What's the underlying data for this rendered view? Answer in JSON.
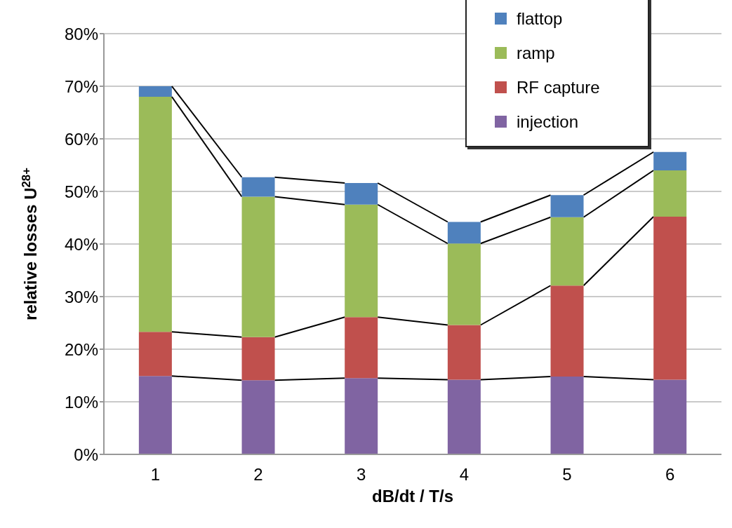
{
  "chart_data": {
    "type": "bar",
    "stacked": true,
    "xlabel": "dB/dt / T/s",
    "ylabel": "relative losses U$^{28+}$",
    "categories": [
      "1",
      "2",
      "3",
      "4",
      "5",
      "6"
    ],
    "series": [
      {
        "name": "injection",
        "color": "#8064a2",
        "values": [
          14.9,
          14.1,
          14.5,
          14.2,
          14.8,
          14.2
        ]
      },
      {
        "name": "RF capture",
        "color": "#c0504d",
        "values": [
          8.4,
          8.2,
          11.6,
          10.4,
          17.3,
          31.0
        ]
      },
      {
        "name": "ramp",
        "color": "#9bbb59",
        "values": [
          44.7,
          26.7,
          21.4,
          15.5,
          13.0,
          8.8
        ]
      },
      {
        "name": "flattop",
        "color": "#4f81bd",
        "values": [
          2.0,
          3.7,
          4.1,
          4.1,
          4.2,
          3.5
        ]
      }
    ],
    "ylim": [
      0,
      80
    ],
    "yticks": [
      {
        "value": 0,
        "label": "0%"
      },
      {
        "value": 10,
        "label": "10%"
      },
      {
        "value": 20,
        "label": "20%"
      },
      {
        "value": 30,
        "label": "30%"
      },
      {
        "value": 40,
        "label": "40%"
      },
      {
        "value": 50,
        "label": "50%"
      },
      {
        "value": 60,
        "label": "60%"
      },
      {
        "value": 70,
        "label": "70%"
      },
      {
        "value": 80,
        "label": "80%"
      }
    ],
    "grid": "y",
    "legend": "top right"
  }
}
